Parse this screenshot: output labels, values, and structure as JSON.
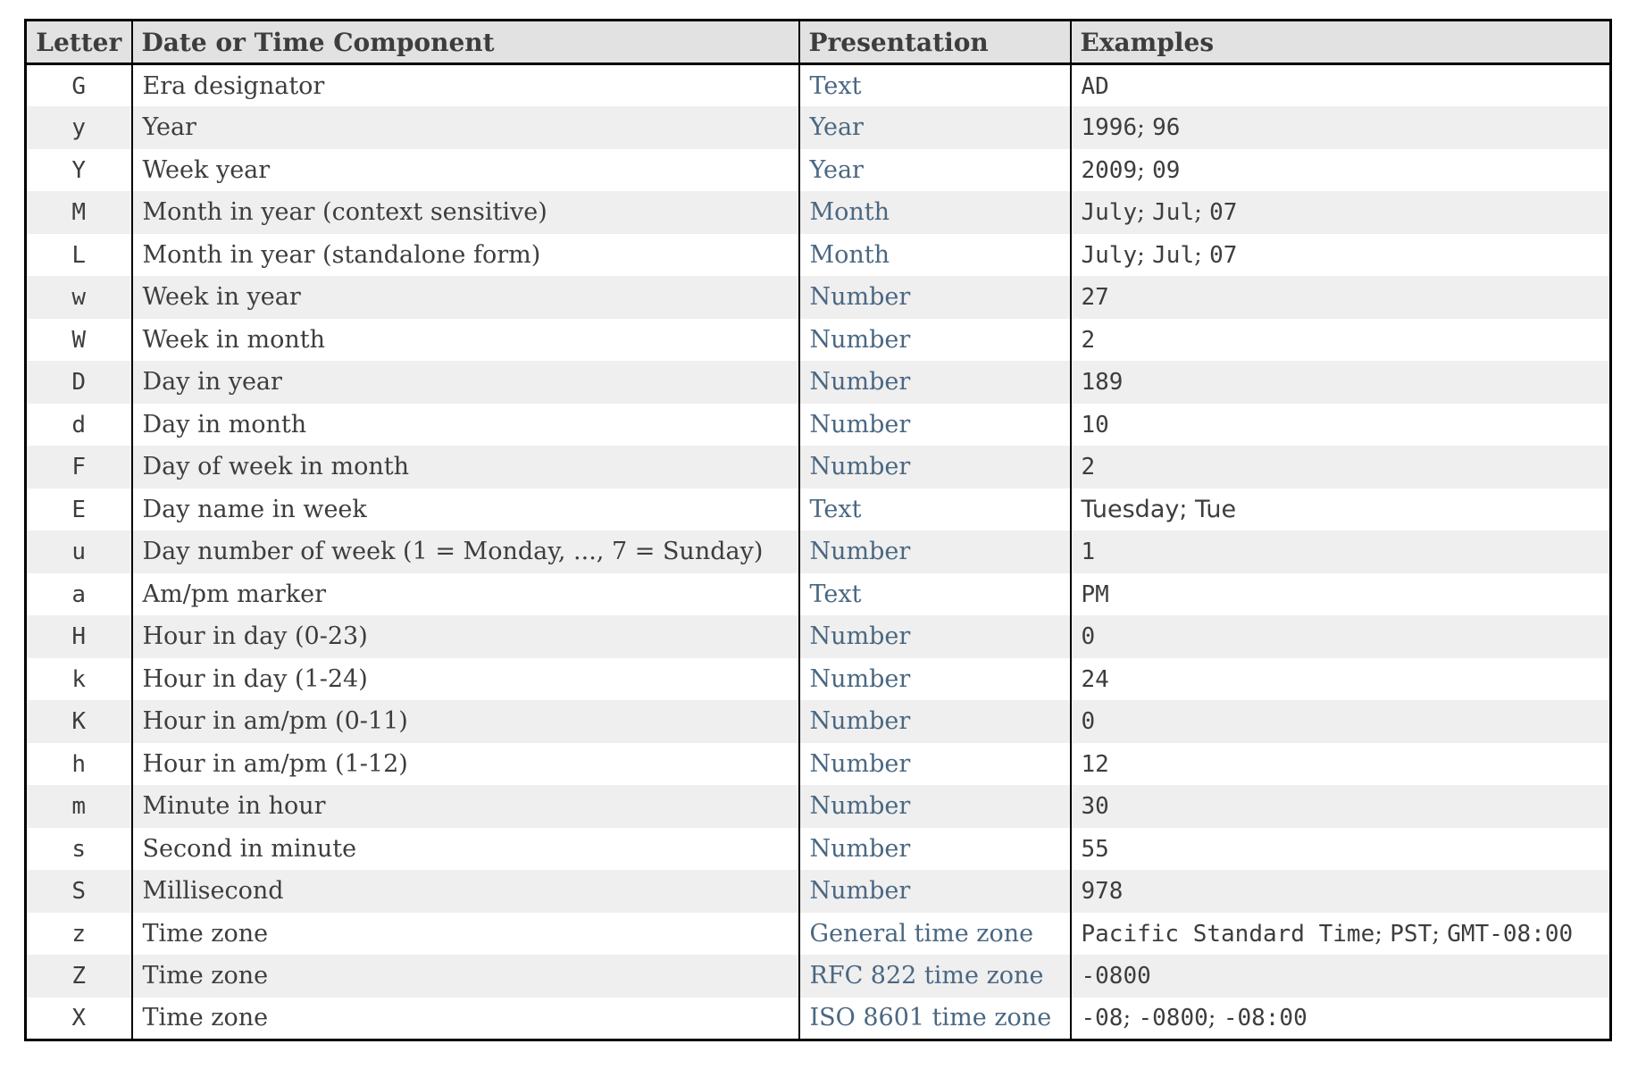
{
  "colors": {
    "header_bg": "#e2e2e2",
    "stripe_bg": "#efefef",
    "border": "#000000",
    "text": "#3d3d3d",
    "link": "#4a6782"
  },
  "table": {
    "headers": [
      "Letter",
      "Date or Time Component",
      "Presentation",
      "Examples"
    ],
    "rows": [
      {
        "letter": "G",
        "component": "Era designator",
        "presentation": "Text",
        "examples": [
          {
            "text": "AD",
            "style": "code"
          }
        ]
      },
      {
        "letter": "y",
        "component": "Year",
        "presentation": "Year",
        "examples": [
          {
            "text": "1996",
            "style": "code"
          },
          {
            "text": "; ",
            "style": "plain"
          },
          {
            "text": "96",
            "style": "code"
          }
        ]
      },
      {
        "letter": "Y",
        "component": "Week year",
        "presentation": "Year",
        "examples": [
          {
            "text": "2009",
            "style": "code"
          },
          {
            "text": "; ",
            "style": "plain"
          },
          {
            "text": "09",
            "style": "code"
          }
        ]
      },
      {
        "letter": "M",
        "component": "Month in year (context sensitive)",
        "presentation": "Month",
        "examples": [
          {
            "text": "July",
            "style": "code"
          },
          {
            "text": "; ",
            "style": "plain"
          },
          {
            "text": "Jul",
            "style": "code"
          },
          {
            "text": "; ",
            "style": "plain"
          },
          {
            "text": "07",
            "style": "code"
          }
        ]
      },
      {
        "letter": "L",
        "component": "Month in year (standalone form)",
        "presentation": "Month",
        "examples": [
          {
            "text": "July",
            "style": "code"
          },
          {
            "text": "; ",
            "style": "plain"
          },
          {
            "text": "Jul",
            "style": "code"
          },
          {
            "text": "; ",
            "style": "plain"
          },
          {
            "text": "07",
            "style": "code"
          }
        ]
      },
      {
        "letter": "w",
        "component": "Week in year",
        "presentation": "Number",
        "examples": [
          {
            "text": "27",
            "style": "code"
          }
        ]
      },
      {
        "letter": "W",
        "component": "Week in month",
        "presentation": "Number",
        "examples": [
          {
            "text": "2",
            "style": "code"
          }
        ]
      },
      {
        "letter": "D",
        "component": "Day in year",
        "presentation": "Number",
        "examples": [
          {
            "text": "189",
            "style": "code"
          }
        ]
      },
      {
        "letter": "d",
        "component": "Day in month",
        "presentation": "Number",
        "examples": [
          {
            "text": "10",
            "style": "code"
          }
        ]
      },
      {
        "letter": "F",
        "component": "Day of week in month",
        "presentation": "Number",
        "examples": [
          {
            "text": "2",
            "style": "code"
          }
        ]
      },
      {
        "letter": "E",
        "component": "Day name in week",
        "presentation": "Text",
        "examples": [
          {
            "text": "Tuesday; Tue",
            "style": "sans"
          }
        ]
      },
      {
        "letter": "u",
        "component": "Day number of week (1 = Monday, ..., 7 = Sunday)",
        "presentation": "Number",
        "examples": [
          {
            "text": "1",
            "style": "code"
          }
        ]
      },
      {
        "letter": "a",
        "component": "Am/pm marker",
        "presentation": "Text",
        "examples": [
          {
            "text": "PM",
            "style": "code"
          }
        ]
      },
      {
        "letter": "H",
        "component": "Hour in day (0-23)",
        "presentation": "Number",
        "examples": [
          {
            "text": "0",
            "style": "code"
          }
        ]
      },
      {
        "letter": "k",
        "component": "Hour in day (1-24)",
        "presentation": "Number",
        "examples": [
          {
            "text": "24",
            "style": "code"
          }
        ]
      },
      {
        "letter": "K",
        "component": "Hour in am/pm (0-11)",
        "presentation": "Number",
        "examples": [
          {
            "text": "0",
            "style": "code"
          }
        ]
      },
      {
        "letter": "h",
        "component": "Hour in am/pm (1-12)",
        "presentation": "Number",
        "examples": [
          {
            "text": "12",
            "style": "code"
          }
        ]
      },
      {
        "letter": "m",
        "component": "Minute in hour",
        "presentation": "Number",
        "examples": [
          {
            "text": "30",
            "style": "code"
          }
        ]
      },
      {
        "letter": "s",
        "component": "Second in minute",
        "presentation": "Number",
        "examples": [
          {
            "text": "55",
            "style": "code"
          }
        ]
      },
      {
        "letter": "S",
        "component": "Millisecond",
        "presentation": "Number",
        "examples": [
          {
            "text": "978",
            "style": "code"
          }
        ]
      },
      {
        "letter": "z",
        "component": "Time zone",
        "presentation": "General time zone",
        "examples": [
          {
            "text": "Pacific Standard Time",
            "style": "code"
          },
          {
            "text": "; ",
            "style": "plain"
          },
          {
            "text": "PST",
            "style": "code"
          },
          {
            "text": "; ",
            "style": "plain"
          },
          {
            "text": "GMT-08:00",
            "style": "code"
          }
        ]
      },
      {
        "letter": "Z",
        "component": "Time zone",
        "presentation": "RFC 822 time zone",
        "examples": [
          {
            "text": "-0800",
            "style": "code"
          }
        ]
      },
      {
        "letter": "X",
        "component": "Time zone",
        "presentation": "ISO 8601 time zone",
        "examples": [
          {
            "text": "-08",
            "style": "code"
          },
          {
            "text": "; ",
            "style": "plain"
          },
          {
            "text": "-0800",
            "style": "code"
          },
          {
            "text": "; ",
            "style": "plain"
          },
          {
            "text": "-08:00",
            "style": "code"
          }
        ]
      }
    ]
  }
}
